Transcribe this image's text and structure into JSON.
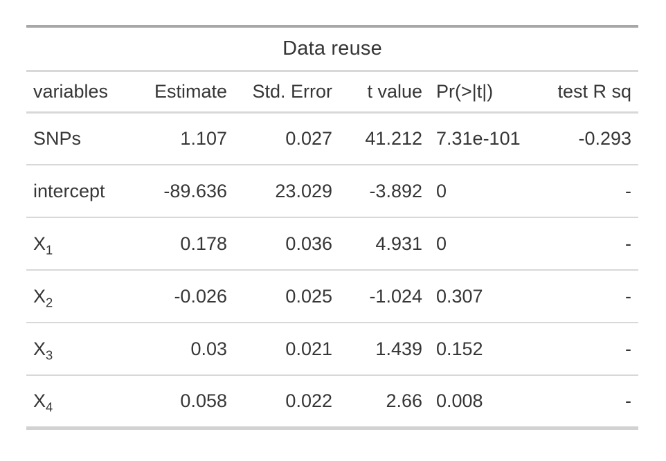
{
  "page": {
    "background": "#ffffff"
  },
  "table": {
    "title": "Data reuse",
    "columns": [
      {
        "id": "variables",
        "label": "variables",
        "align": "left"
      },
      {
        "id": "estimate",
        "label": "Estimate",
        "align": "right"
      },
      {
        "id": "std_error",
        "label": "Std. Error",
        "align": "right"
      },
      {
        "id": "t_value",
        "label": "t value",
        "align": "right"
      },
      {
        "id": "pr",
        "label": "Pr(>|t|)",
        "align": "left"
      },
      {
        "id": "test_r_sq",
        "label": "test R sq",
        "align": "right"
      }
    ],
    "rows": [
      {
        "variable_base": "SNPs",
        "variable_sub": "",
        "estimate": "1.107",
        "std_error": "0.027",
        "t_value": "41.212",
        "pr": "7.31e-101",
        "test_r_sq": "-0.293"
      },
      {
        "variable_base": "intercept",
        "variable_sub": "",
        "estimate": "-89.636",
        "std_error": "23.029",
        "t_value": "-3.892",
        "pr": "0",
        "test_r_sq": "-"
      },
      {
        "variable_base": "X",
        "variable_sub": "1",
        "estimate": "0.178",
        "std_error": "0.036",
        "t_value": "4.931",
        "pr": "0",
        "test_r_sq": "-"
      },
      {
        "variable_base": "X",
        "variable_sub": "2",
        "estimate": "-0.026",
        "std_error": "0.025",
        "t_value": "-1.024",
        "pr": "0.307",
        "test_r_sq": "-"
      },
      {
        "variable_base": "X",
        "variable_sub": "3",
        "estimate": "0.03",
        "std_error": "0.021",
        "t_value": "1.439",
        "pr": "0.152",
        "test_r_sq": "-"
      },
      {
        "variable_base": "X",
        "variable_sub": "4",
        "estimate": "0.058",
        "std_error": "0.022",
        "t_value": "2.66",
        "pr": "0.008",
        "test_r_sq": "-"
      }
    ],
    "colors": {
      "text": "#363636",
      "top_border": "#a7a7a7",
      "bottom_border": "#d2d2d2",
      "inner_line": "#d8d8d8"
    }
  },
  "chart_data": {
    "type": "table",
    "title": "Data reuse",
    "columns": [
      "variables",
      "Estimate",
      "Std. Error",
      "t value",
      "Pr(>|t|)",
      "test R sq"
    ],
    "rows": [
      [
        "SNPs",
        1.107,
        0.027,
        41.212,
        "7.31e-101",
        -0.293
      ],
      [
        "intercept",
        -89.636,
        23.029,
        -3.892,
        0,
        "-"
      ],
      [
        "X_1",
        0.178,
        0.036,
        4.931,
        0,
        "-"
      ],
      [
        "X_2",
        -0.026,
        0.025,
        -1.024,
        0.307,
        "-"
      ],
      [
        "X_3",
        0.03,
        0.021,
        1.439,
        0.152,
        "-"
      ],
      [
        "X_4",
        0.058,
        0.022,
        2.66,
        0.008,
        "-"
      ]
    ],
    "layout": {
      "title_position": "top-center",
      "numeric_columns_align": "right",
      "pr_column_align": "left",
      "grid": "horizontal-rules-only"
    }
  }
}
